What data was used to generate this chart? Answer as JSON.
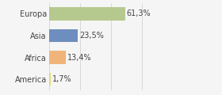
{
  "categories": [
    "Europa",
    "Asia",
    "Africa",
    "America"
  ],
  "values": [
    61.3,
    23.5,
    13.4,
    1.7
  ],
  "labels": [
    "61,3%",
    "23,5%",
    "13,4%",
    "1,7%"
  ],
  "bar_colors": [
    "#b5c98e",
    "#6e8ebf",
    "#f0b47a",
    "#e8d87a"
  ],
  "background_color": "#f5f5f5",
  "xlim": [
    0,
    100
  ],
  "label_fontsize": 7.0,
  "tick_fontsize": 7.0,
  "grid_lines": [
    0,
    25,
    50,
    75,
    100
  ]
}
